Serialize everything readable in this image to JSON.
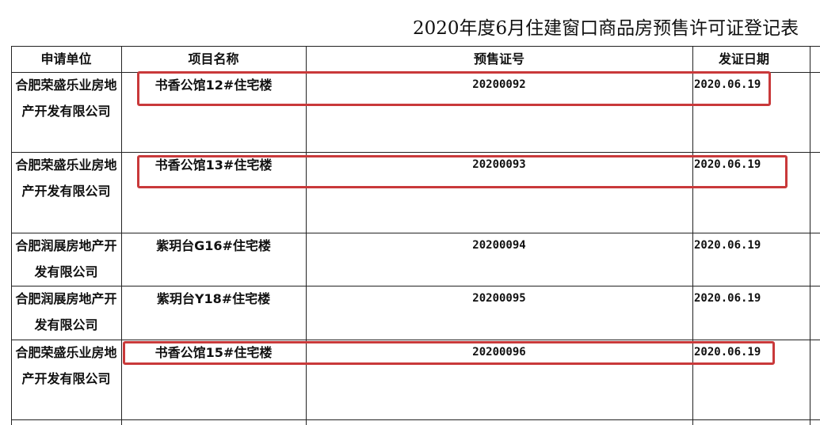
{
  "title": "2020年度6月住建窗口商品房预售许可证登记表",
  "columns": [
    "申请单位",
    "项目名称",
    "预售证号",
    "发证日期"
  ],
  "rows": [
    {
      "applicant": "合肥荣盛乐业房地产开发有限公司",
      "project": "书香公馆12#住宅楼",
      "permit_no": "20200092",
      "date": "2020.06.19",
      "highlighted": true
    },
    {
      "applicant": "合肥荣盛乐业房地产开发有限公司",
      "project": "书香公馆13#住宅楼",
      "permit_no": "20200093",
      "date": "2020.06.19",
      "highlighted": true
    },
    {
      "applicant": "合肥润展房地产开发有限公司",
      "project": "紫玥台G16#住宅楼",
      "permit_no": "20200094",
      "date": "2020.06.19",
      "highlighted": false
    },
    {
      "applicant": "合肥润展房地产开发有限公司",
      "project": "紫玥台Y18#住宅楼",
      "permit_no": "20200095",
      "date": "2020.06.19",
      "highlighted": false
    },
    {
      "applicant": "合肥荣盛乐业房地产开发有限公司",
      "project": "书香公馆15#住宅楼",
      "permit_no": "20200096",
      "date": "2020.06.19",
      "highlighted": true
    }
  ],
  "highlight_color": "#c9393a"
}
